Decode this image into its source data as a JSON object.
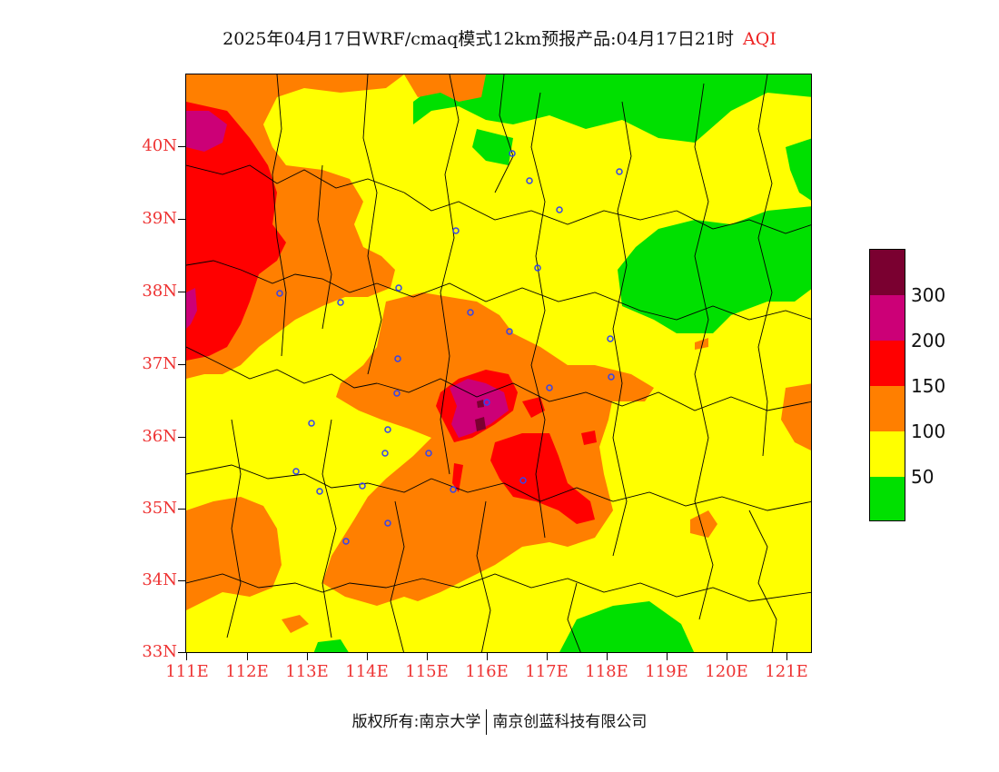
{
  "title": {
    "main": "2025年04月17日WRF/cmaq模式12km预报产品:04月17日21时",
    "variable": "AQI"
  },
  "map": {
    "lat_labels": [
      "40N",
      "39N",
      "38N",
      "37N",
      "36N",
      "35N",
      "34N",
      "33N"
    ],
    "lon_labels": [
      "111E",
      "112E",
      "113E",
      "114E",
      "115E",
      "116E",
      "117E",
      "118E",
      "119E",
      "120E",
      "121E"
    ],
    "lon_range": [
      111,
      121.4
    ],
    "lat_range": [
      33,
      40.95
    ]
  },
  "legend": {
    "labels": [
      "300",
      "200",
      "150",
      "100",
      "50"
    ],
    "colors": {
      "above_300": "#7a0030",
      "200_300": "#cc0077",
      "150_200": "#ff0000",
      "100_150": "#ff7f00",
      "50_100": "#ffff00",
      "0_50": "#00e000"
    }
  },
  "footer": {
    "left": "版权所有:南京大学",
    "right": "南京创蓝科技有限公司"
  }
}
